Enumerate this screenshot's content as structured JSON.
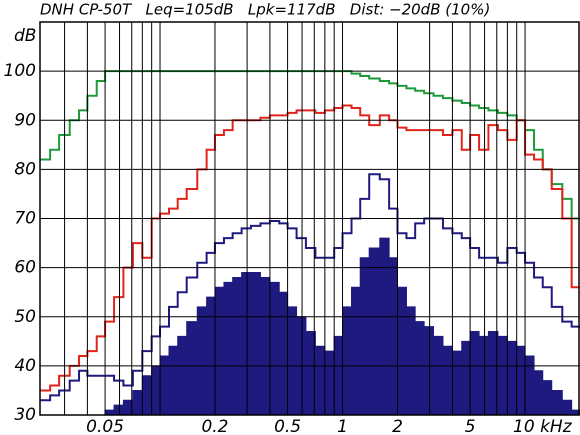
{
  "chart_data": {
    "type": "step",
    "title": "DNH CP-50T   Leq=105dB   Lpk=117dB   Dist: −20dB (10%)",
    "y_label": "dB",
    "x": [
      0.022,
      0.025,
      0.028,
      0.032,
      0.036,
      0.04,
      0.045,
      0.05,
      0.056,
      0.063,
      0.071,
      0.08,
      0.09,
      0.1,
      0.112,
      0.125,
      0.14,
      0.16,
      0.18,
      0.2,
      0.224,
      0.25,
      0.28,
      0.315,
      0.355,
      0.4,
      0.45,
      0.5,
      0.56,
      0.63,
      0.71,
      0.8,
      0.9,
      1,
      1.12,
      1.25,
      1.4,
      1.6,
      1.8,
      2,
      2.24,
      2.5,
      2.8,
      3.15,
      3.55,
      4,
      4.5,
      5,
      5.6,
      6.3,
      7.1,
      8,
      9,
      10,
      11.2,
      12.5,
      14,
      16,
      18
    ],
    "series": [
      {
        "color": "#1f1a80",
        "fill": true,
        "values": [
          30,
          30,
          30,
          30,
          30,
          30,
          30,
          31,
          32,
          33,
          35,
          38,
          40,
          42,
          44,
          46,
          49,
          52,
          54,
          56,
          57,
          58,
          59,
          59,
          58,
          57,
          55,
          52,
          50,
          47,
          44,
          43,
          46,
          52,
          56,
          62,
          64,
          66,
          62,
          56,
          52,
          49,
          48,
          46,
          44,
          43,
          45,
          47,
          46,
          47,
          46,
          45,
          44,
          42,
          39,
          37,
          35,
          33,
          31
        ]
      },
      {
        "color": "#1f9a3a",
        "values": [
          82,
          84,
          87,
          90,
          92,
          95,
          98,
          100,
          100,
          100,
          100,
          100,
          100,
          100,
          100,
          100,
          100,
          100,
          100,
          100,
          100,
          100,
          100,
          100,
          100,
          100,
          100,
          100,
          100,
          100,
          100,
          100,
          100,
          100,
          99.5,
          99,
          98.5,
          98,
          97.5,
          97,
          96.5,
          96,
          95.5,
          95,
          94.5,
          94,
          93.5,
          93,
          92.5,
          92,
          91.5,
          91,
          90,
          88,
          84,
          80,
          77,
          74,
          70
        ]
      },
      {
        "color": "#e0241c",
        "values": [
          35,
          36,
          38,
          40,
          42,
          43,
          46,
          49,
          54,
          60,
          65,
          62,
          70,
          71,
          72,
          74,
          76,
          80,
          84,
          87,
          88,
          90,
          90,
          90,
          90.5,
          91,
          91,
          91.5,
          92,
          92,
          91.5,
          92,
          92.5,
          93,
          92.5,
          91,
          89,
          91,
          90,
          88.5,
          88,
          88,
          88,
          88,
          87,
          88,
          84,
          87,
          84,
          89,
          88,
          86,
          90,
          83,
          82,
          80,
          76,
          70,
          56
        ]
      },
      {
        "color": "#1f1a80",
        "values": [
          33,
          34,
          35,
          37,
          39,
          38,
          38,
          38,
          37,
          36,
          39,
          43,
          46,
          48,
          52,
          55,
          58,
          61,
          63,
          65,
          66,
          67,
          68,
          68.5,
          69,
          69.5,
          69,
          68,
          66,
          64,
          62,
          62,
          64,
          67,
          70,
          74,
          79,
          78,
          72,
          67,
          66,
          69,
          70,
          70,
          68,
          67,
          66,
          64,
          62,
          62,
          61,
          64,
          63,
          61,
          58,
          56,
          52,
          49,
          48
        ]
      }
    ],
    "xlim": [
      0.022,
      20
    ],
    "log_x": true,
    "xticks": [
      {
        "value": 0.05,
        "label": "0.05"
      },
      {
        "value": 0.2,
        "label": "0.2"
      },
      {
        "value": 0.5,
        "label": "0.5"
      },
      1,
      2,
      5,
      {
        "value": 10,
        "label": "10 kHz"
      }
    ],
    "x_grid_lines": [
      0.03,
      0.04,
      0.05,
      0.06,
      0.07,
      0.08,
      0.09,
      0.1,
      0.2,
      0.3,
      0.4,
      0.5,
      0.6,
      0.7,
      0.8,
      0.9,
      1,
      2,
      3,
      4,
      5,
      6,
      7,
      8,
      9,
      10
    ],
    "ylim": [
      30,
      110
    ],
    "yticks": [
      30,
      40,
      50,
      60,
      70,
      80,
      90,
      100
    ],
    "grid": true
  }
}
